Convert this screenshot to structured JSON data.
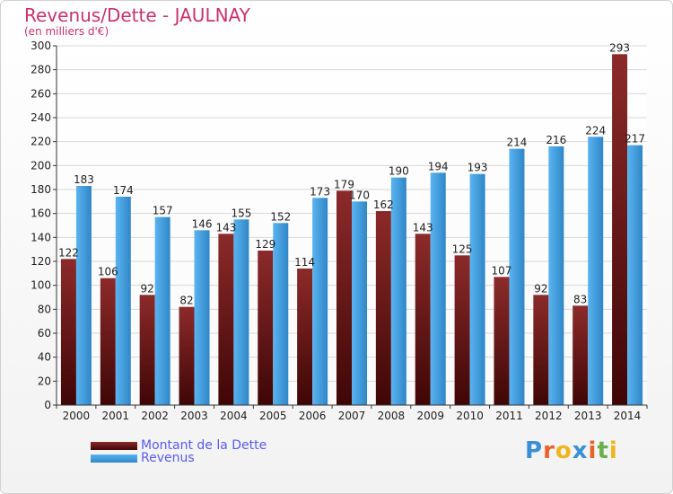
{
  "colors": {
    "title": "#c8326e",
    "legend_text": "#5a5af0",
    "dette_top": "#8c2a2a",
    "dette_bottom": "#3f0606",
    "revenus_top": "#5ab4f0",
    "revenus_bottom": "#2f86c8"
  },
  "logo": {
    "text": "Proxiti"
  },
  "chart_data": {
    "type": "bar",
    "title": "Revenus/Dette - JAULNAY",
    "subtitle": "(en milliers d'€)",
    "categories": [
      "2000",
      "2001",
      "2002",
      "2003",
      "2004",
      "2005",
      "2006",
      "2007",
      "2008",
      "2009",
      "2010",
      "2011",
      "2012",
      "2013",
      "2014"
    ],
    "series": [
      {
        "name": "Montant de la Dette",
        "values": [
          122,
          106,
          92,
          82,
          143,
          129,
          114,
          179,
          162,
          143,
          125,
          107,
          92,
          83,
          293
        ]
      },
      {
        "name": "Revenus",
        "values": [
          183,
          174,
          157,
          146,
          155,
          152,
          173,
          170,
          190,
          194,
          193,
          214,
          216,
          224,
          217
        ]
      }
    ],
    "ylim": [
      0,
      300
    ],
    "yticks": [
      0,
      20,
      40,
      60,
      80,
      100,
      120,
      140,
      160,
      180,
      200,
      220,
      240,
      260,
      280,
      300
    ],
    "grid": true,
    "legend_position": "bottom-left"
  }
}
